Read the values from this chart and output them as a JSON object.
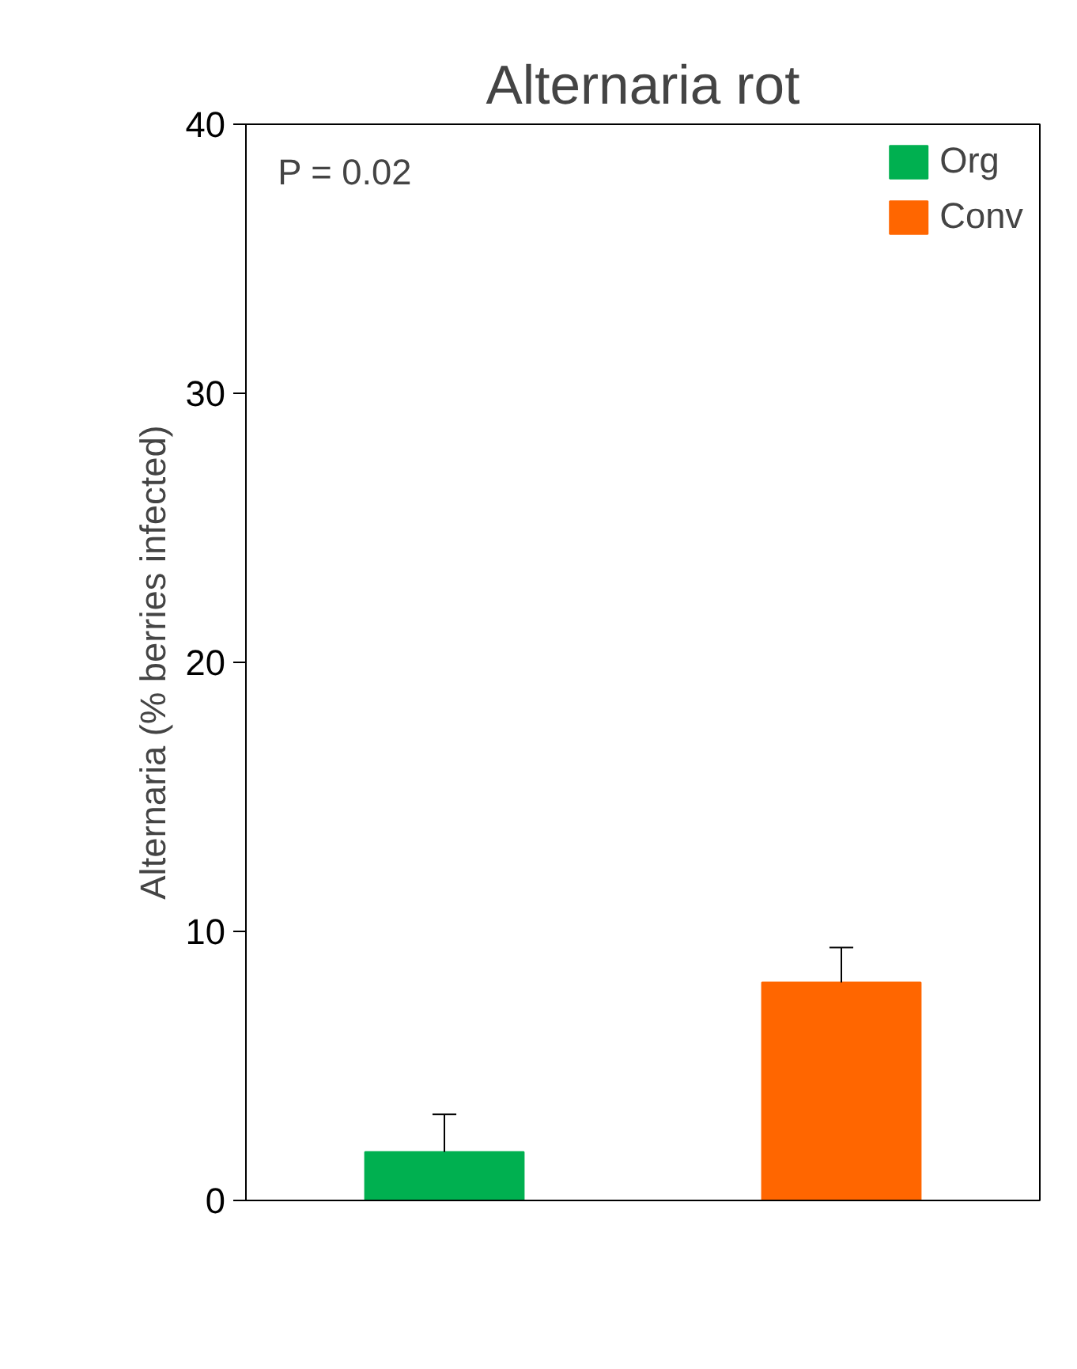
{
  "chart_data": {
    "type": "bar",
    "title": "Alternaria rot",
    "ylabel": "Alternaria (% berries infected)",
    "categories": [
      null,
      null
    ],
    "series": [
      {
        "name": "Org",
        "color": "#00b050",
        "values": [
          1.8,
          null
        ],
        "errors": [
          [
            1.8,
            3.2
          ],
          null
        ]
      },
      {
        "name": "Conv",
        "color": "#ff6600",
        "values": [
          null,
          8.1
        ],
        "errors": [
          null,
          [
            8.1,
            9.4
          ]
        ]
      }
    ],
    "ylim": [
      0,
      40
    ],
    "yticks": [
      0,
      10,
      20,
      30,
      40
    ],
    "grid": false,
    "legend": "top right",
    "tick_labels": "y",
    "annotations": [
      "P = 0.02"
    ]
  }
}
